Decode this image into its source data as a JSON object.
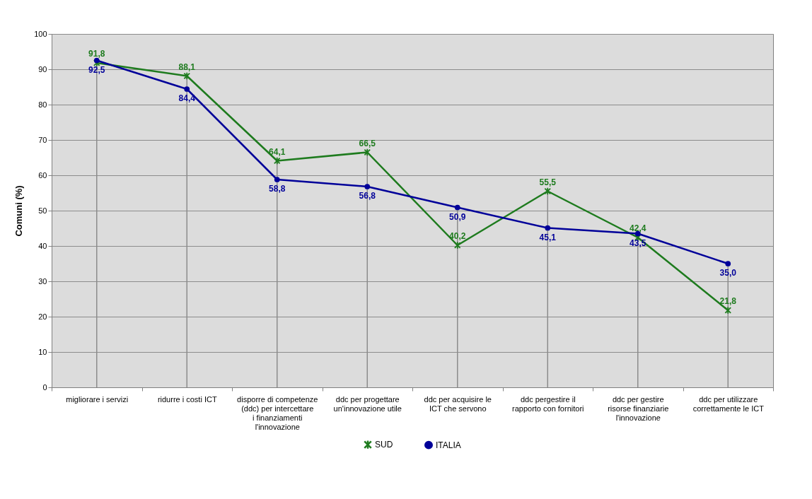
{
  "chart_data": {
    "type": "line",
    "ylabel": "Comuni (%)",
    "categories": [
      "migliorare i servizi",
      "ridurre i costi ICT",
      "disporre di competenze (ddc) per intercettare i finanziamenti l'innovazione",
      "ddc per progettare un'innovazione utile",
      "ddc per acquisire le ICT che servono",
      "ddc pergestire il rapporto con fornitori",
      "ddc per gestire risorse finanziarie l'innovazione",
      "ddc per utilizzare correttamente le ICT"
    ],
    "series": [
      {
        "name": "SUD",
        "color": "#1e7b1e",
        "marker": "cross",
        "values": [
          91.8,
          88.1,
          64.1,
          66.5,
          40.2,
          55.5,
          42.4,
          21.8
        ],
        "value_labels": [
          "91,8",
          "88,1",
          "64,1",
          "66,5",
          "40,2",
          "55,5",
          "42,4",
          "21,8"
        ]
      },
      {
        "name": "ITALIA",
        "color": "#000099",
        "marker": "circle",
        "values": [
          92.5,
          84.4,
          58.8,
          56.8,
          50.9,
          45.1,
          43.5,
          35.0
        ],
        "value_labels": [
          "92,5",
          "84,4",
          "58,8",
          "56,8",
          "50,9",
          "45,1",
          "43,5",
          "35,0"
        ]
      }
    ],
    "ylim": [
      0,
      100
    ],
    "yticks": [
      0,
      10,
      20,
      30,
      40,
      50,
      60,
      70,
      80,
      90,
      100
    ],
    "grid": true,
    "legend": "bottom"
  }
}
